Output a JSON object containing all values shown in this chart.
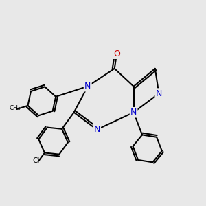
{
  "background_color": "#e8e8e8",
  "figsize": [
    3.0,
    3.0
  ],
  "dpi": 100,
  "bond_color": "#000000",
  "bond_width": 1.5,
  "font_size": 9,
  "colors": {
    "C": "#000000",
    "N": "#0000cc",
    "O": "#cc0000",
    "Cl": "#000000"
  }
}
